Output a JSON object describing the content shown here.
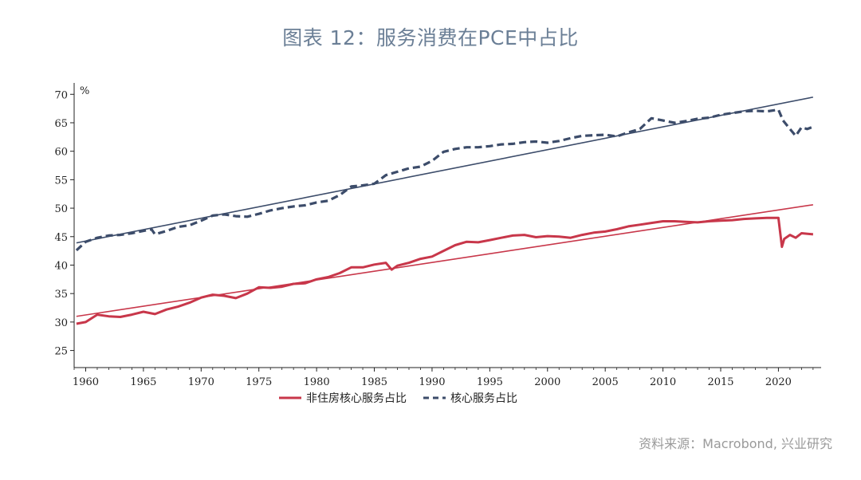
{
  "title": "图表 12：服务消费在PCE中占比",
  "source": "资料来源：Macrobond, 兴业研究",
  "chart_data": {
    "type": "line",
    "ylabel": "%",
    "ylim": [
      22,
      72
    ],
    "xlim": [
      1959.0,
      2023.7
    ],
    "yticks": [
      25,
      30,
      35,
      40,
      45,
      50,
      55,
      60,
      65,
      70
    ],
    "xticks": [
      1960,
      1965,
      1970,
      1975,
      1980,
      1985,
      1990,
      1995,
      2000,
      2005,
      2010,
      2015,
      2020
    ],
    "grid": false,
    "legend_position": "bottom",
    "series": [
      {
        "name": "非住房核心服务占比",
        "color": "#c8374a",
        "style": "solid",
        "x": [
          1959.2,
          1960,
          1961,
          1962,
          1963,
          1964,
          1965,
          1966,
          1967,
          1968,
          1969,
          1970,
          1971,
          1972,
          1973,
          1974,
          1975,
          1976,
          1977,
          1978,
          1979,
          1980,
          1981,
          1982,
          1983,
          1984,
          1985,
          1986,
          1986.5,
          1987,
          1988,
          1989,
          1990,
          1991,
          1992,
          1993,
          1994,
          1995,
          1996,
          1997,
          1998,
          1999,
          2000,
          2001,
          2002,
          2003,
          2004,
          2005,
          2006,
          2007,
          2008,
          2009,
          2010,
          2011,
          2012,
          2013,
          2014,
          2015,
          2016,
          2017,
          2018,
          2019,
          2020.0,
          2020.3,
          2020.5,
          2021,
          2021.5,
          2022,
          2023
        ],
        "values": [
          29.7,
          30.0,
          31.3,
          31.0,
          30.9,
          31.3,
          31.8,
          31.4,
          32.2,
          32.7,
          33.4,
          34.3,
          34.8,
          34.6,
          34.2,
          35.0,
          36.1,
          36.0,
          36.2,
          36.7,
          36.8,
          37.5,
          37.9,
          38.6,
          39.6,
          39.6,
          40.1,
          40.4,
          39.2,
          39.9,
          40.4,
          41.1,
          41.5,
          42.5,
          43.5,
          44.1,
          44.0,
          44.4,
          44.8,
          45.2,
          45.3,
          44.9,
          45.1,
          45.0,
          44.8,
          45.3,
          45.7,
          45.9,
          46.3,
          46.8,
          47.1,
          47.4,
          47.7,
          47.7,
          47.6,
          47.5,
          47.7,
          47.8,
          47.9,
          48.1,
          48.2,
          48.3,
          48.3,
          43.2,
          44.6,
          45.3,
          44.8,
          45.6,
          45.4
        ]
      },
      {
        "name": "核心服务占比",
        "color": "#3c4c6a",
        "style": "dashed",
        "x": [
          1959.2,
          1960,
          1961,
          1962,
          1963,
          1964,
          1965,
          1965.7,
          1966,
          1967,
          1968,
          1969,
          1970,
          1971,
          1972,
          1973,
          1974,
          1975,
          1976,
          1977,
          1978,
          1979,
          1980,
          1981,
          1982,
          1983,
          1984,
          1985,
          1986,
          1987,
          1988,
          1989,
          1990,
          1991,
          1992,
          1993,
          1994,
          1995,
          1996,
          1997,
          1998,
          1999,
          2000,
          2001,
          2002,
          2003,
          2004,
          2005,
          2006,
          2007,
          2008,
          2009,
          2010,
          2011,
          2012,
          2013,
          2014,
          2015,
          2016,
          2017,
          2018,
          2019,
          2020.0,
          2020.4,
          2021,
          2021.5,
          2022,
          2022.5,
          2023
        ],
        "values": [
          42.6,
          44.1,
          44.8,
          45.2,
          45.3,
          45.6,
          46.0,
          46.3,
          45.4,
          46.0,
          46.7,
          47.0,
          47.8,
          48.7,
          48.9,
          48.6,
          48.5,
          49.0,
          49.6,
          50.0,
          50.3,
          50.5,
          51.0,
          51.3,
          52.3,
          53.8,
          54.0,
          54.3,
          55.8,
          56.4,
          57.0,
          57.3,
          58.3,
          59.9,
          60.4,
          60.7,
          60.7,
          60.9,
          61.2,
          61.3,
          61.6,
          61.7,
          61.5,
          61.8,
          62.3,
          62.7,
          62.8,
          62.9,
          62.6,
          63.3,
          63.9,
          65.8,
          65.4,
          65.0,
          65.3,
          65.7,
          65.9,
          66.4,
          66.7,
          67.0,
          67.1,
          67.0,
          67.3,
          65.4,
          63.9,
          62.7,
          64.2,
          63.9,
          64.3
        ]
      }
    ],
    "trendlines": [
      {
        "color": "#c8374a",
        "x": [
          1959.2,
          2023.0
        ],
        "values": [
          31.0,
          50.6
        ]
      },
      {
        "color": "#3c4c6a",
        "x": [
          1959.2,
          2023.0
        ],
        "values": [
          43.9,
          69.5
        ]
      }
    ]
  }
}
